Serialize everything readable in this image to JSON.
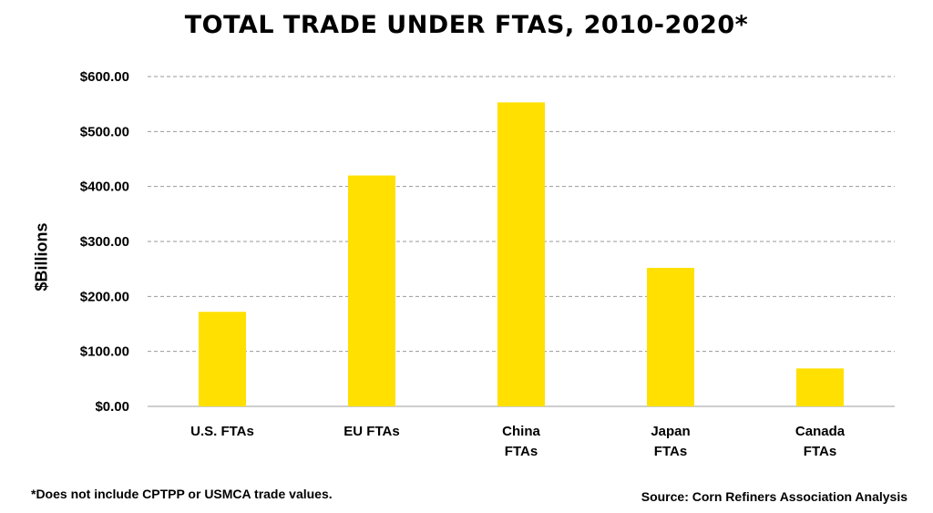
{
  "chart_data": {
    "type": "bar",
    "title": "TOTAL TRADE UNDER FTAS, 2010-2020*",
    "ylabel": "$Billions",
    "xlabel": "",
    "categories": [
      [
        "U.S. FTAs"
      ],
      [
        "EU FTAs"
      ],
      [
        "China",
        "FTAs"
      ],
      [
        "Japan",
        "FTAs"
      ],
      [
        "Canada",
        "FTAs"
      ]
    ],
    "values": [
      172,
      420,
      553,
      252,
      69
    ],
    "ylim": [
      0,
      600
    ],
    "yticks": [
      0,
      100,
      200,
      300,
      400,
      500,
      600
    ],
    "ytick_labels": [
      "$0.00",
      "$100.00",
      "$200.00",
      "$300.00",
      "$400.00",
      "$500.00",
      "$600.00"
    ],
    "bar_color": "#FFE000",
    "grid": true
  },
  "footnote": "*Does not include CPTPP or USMCA trade values.",
  "source": "Source: Corn Refiners Association Analysis"
}
